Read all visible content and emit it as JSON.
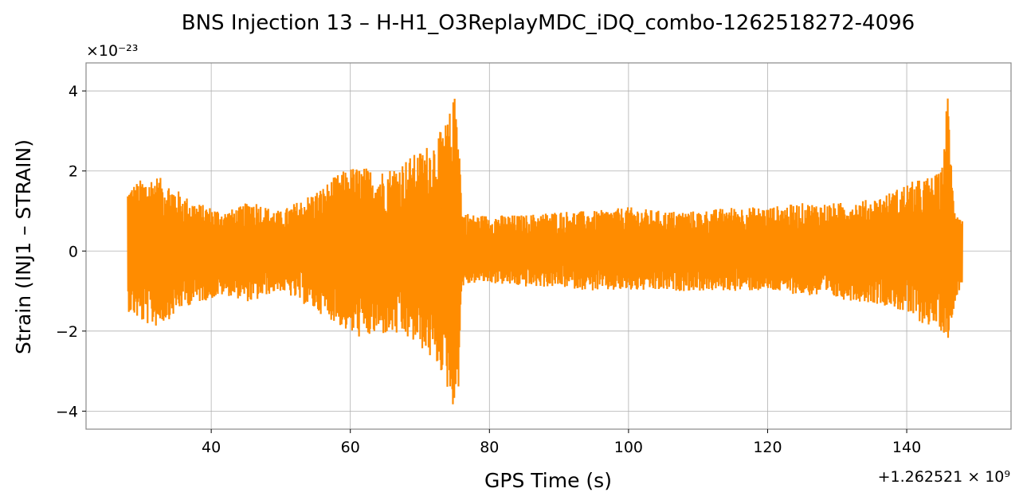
{
  "chart_data": {
    "type": "line",
    "title": "BNS Injection 13 – H-H1_O3ReplayMDC_iDQ_combo-1262518272-4096",
    "xlabel": "GPS Time (s)",
    "ylabel": "Strain (INJ1 – STRAIN)",
    "x_offset_label": "+1.262521 × 10⁹",
    "y_scale_label": "×10⁻²³",
    "xlim": [
      22,
      155
    ],
    "ylim": [
      -4.45,
      4.7
    ],
    "x_ticks": [
      40,
      60,
      80,
      100,
      120,
      140
    ],
    "x_tick_labels": [
      "40",
      "60",
      "80",
      "100",
      "120",
      "140"
    ],
    "y_ticks": [
      -4,
      -2,
      0,
      2,
      4
    ],
    "y_tick_labels": [
      "−4",
      "−2",
      "0",
      "2",
      "4"
    ],
    "grid": true,
    "legend": "none",
    "line_color": "#ff8c00",
    "series": [
      {
        "envelope_x": [
          28,
          30,
          32,
          34,
          36,
          38,
          40,
          42,
          44,
          46,
          48,
          50,
          52,
          54,
          56,
          58,
          60,
          62,
          64,
          66,
          68,
          70,
          72,
          73,
          74,
          75,
          75.5,
          76,
          78,
          80,
          85,
          90,
          95,
          100,
          105,
          110,
          115,
          120,
          125,
          130,
          135,
          138,
          140,
          142,
          144,
          145,
          146,
          146.5,
          147,
          148
        ],
        "envelope_upper": [
          1.6,
          1.8,
          1.9,
          1.7,
          1.4,
          1.2,
          1.1,
          1.0,
          1.1,
          1.3,
          1.1,
          1.0,
          1.2,
          1.4,
          1.6,
          1.9,
          2.1,
          2.1,
          2.0,
          2.1,
          2.3,
          2.5,
          2.8,
          3.0,
          3.3,
          3.9,
          4.2,
          1.0,
          0.9,
          0.9,
          0.9,
          1.0,
          1.0,
          1.1,
          1.0,
          1.0,
          1.1,
          1.1,
          1.2,
          1.2,
          1.3,
          1.5,
          1.7,
          1.8,
          1.9,
          2.0,
          4.25,
          1.8,
          1.2,
          0.8
        ],
        "envelope_lower": [
          -1.5,
          -1.8,
          -1.9,
          -1.7,
          -1.4,
          -1.3,
          -1.2,
          -1.1,
          -1.2,
          -1.3,
          -1.1,
          -1.0,
          -1.2,
          -1.4,
          -1.6,
          -1.8,
          -2.1,
          -2.2,
          -2.1,
          -2.1,
          -2.2,
          -2.4,
          -2.8,
          -3.0,
          -3.5,
          -4.0,
          -3.7,
          -0.9,
          -0.8,
          -0.8,
          -0.9,
          -0.9,
          -1.0,
          -1.0,
          -1.0,
          -1.0,
          -1.0,
          -1.0,
          -1.1,
          -1.2,
          -1.3,
          -1.4,
          -1.6,
          -1.8,
          -1.9,
          -2.0,
          -2.2,
          -1.8,
          -1.2,
          -0.8
        ]
      }
    ]
  }
}
